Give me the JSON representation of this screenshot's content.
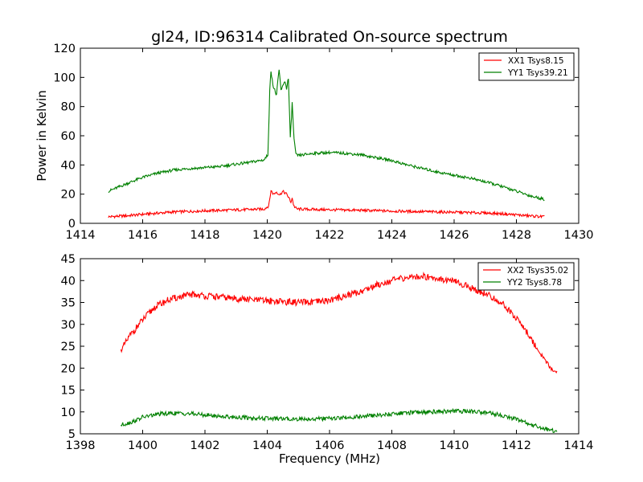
{
  "figure": {
    "title": "gl24, ID:96314 Calibrated On-source spectrum",
    "ylabel": "Power in Kelvin",
    "xlabel": "Frequency (MHz)"
  },
  "chart_data": [
    {
      "type": "line",
      "title": "gl24, ID:96314 Calibrated On-source spectrum",
      "ylabel": "Power in Kelvin",
      "xlabel": "",
      "xlim": [
        1414,
        1430
      ],
      "ylim": [
        0,
        120
      ],
      "xticks": [
        1414,
        1416,
        1418,
        1420,
        1422,
        1424,
        1426,
        1428,
        1430
      ],
      "yticks": [
        0,
        20,
        40,
        60,
        80,
        100,
        120
      ],
      "legend_position": "top-right",
      "grid": false,
      "series": [
        {
          "name": "XX1 Tsys8.15",
          "color": "#ff0000",
          "points": [
            [
              1414.9,
              4.5
            ],
            [
              1415.5,
              5.2
            ],
            [
              1416.0,
              6.2
            ],
            [
              1416.5,
              7.0
            ],
            [
              1417.0,
              7.8
            ],
            [
              1417.5,
              8.2
            ],
            [
              1418.0,
              8.6
            ],
            [
              1418.5,
              8.9
            ],
            [
              1419.0,
              9.2
            ],
            [
              1419.5,
              9.5
            ],
            [
              1419.9,
              9.8
            ],
            [
              1420.05,
              12.0
            ],
            [
              1420.12,
              22.5
            ],
            [
              1420.2,
              20.0
            ],
            [
              1420.3,
              21.5
            ],
            [
              1420.4,
              19.5
            ],
            [
              1420.5,
              21.8
            ],
            [
              1420.6,
              20.5
            ],
            [
              1420.7,
              17.5
            ],
            [
              1420.75,
              14.0
            ],
            [
              1420.8,
              17.5
            ],
            [
              1420.85,
              12.0
            ],
            [
              1420.95,
              9.8
            ],
            [
              1421.5,
              9.5
            ],
            [
              1422.0,
              9.3
            ],
            [
              1423.0,
              8.9
            ],
            [
              1424.0,
              8.4
            ],
            [
              1425.0,
              8.0
            ],
            [
              1426.0,
              7.6
            ],
            [
              1427.0,
              7.1
            ],
            [
              1427.5,
              6.6
            ],
            [
              1428.0,
              5.8
            ],
            [
              1428.5,
              5.0
            ],
            [
              1428.9,
              4.5
            ]
          ]
        },
        {
          "name": "YY1 Tsys39.21",
          "color": "#008000",
          "points": [
            [
              1414.9,
              22.0
            ],
            [
              1415.3,
              25.5
            ],
            [
              1415.7,
              29.0
            ],
            [
              1416.0,
              31.5
            ],
            [
              1416.5,
              34.5
            ],
            [
              1417.0,
              36.5
            ],
            [
              1417.5,
              37.5
            ],
            [
              1418.0,
              38.2
            ],
            [
              1418.5,
              39.0
            ],
            [
              1419.0,
              40.5
            ],
            [
              1419.5,
              42.0
            ],
            [
              1419.9,
              43.5
            ],
            [
              1420.02,
              47.0
            ],
            [
              1420.08,
              90.0
            ],
            [
              1420.12,
              105.0
            ],
            [
              1420.2,
              93.0
            ],
            [
              1420.3,
              88.0
            ],
            [
              1420.38,
              105.0
            ],
            [
              1420.45,
              90.0
            ],
            [
              1420.55,
              98.0
            ],
            [
              1420.62,
              93.0
            ],
            [
              1420.68,
              99.0
            ],
            [
              1420.74,
              58.0
            ],
            [
              1420.8,
              82.0
            ],
            [
              1420.86,
              58.0
            ],
            [
              1420.92,
              47.0
            ],
            [
              1421.0,
              46.5
            ],
            [
              1421.5,
              48.0
            ],
            [
              1422.0,
              48.5
            ],
            [
              1422.5,
              48.0
            ],
            [
              1423.0,
              47.0
            ],
            [
              1423.5,
              45.0
            ],
            [
              1424.0,
              43.0
            ],
            [
              1424.5,
              40.0
            ],
            [
              1425.0,
              37.5
            ],
            [
              1425.5,
              35.0
            ],
            [
              1426.0,
              33.0
            ],
            [
              1426.5,
              31.0
            ],
            [
              1427.0,
              28.5
            ],
            [
              1427.5,
              25.5
            ],
            [
              1428.0,
              22.0
            ],
            [
              1428.5,
              18.5
            ],
            [
              1428.9,
              16.5
            ]
          ]
        }
      ]
    },
    {
      "type": "line",
      "title": "",
      "ylabel": "",
      "xlabel": "Frequency (MHz)",
      "xlim": [
        1398,
        1414
      ],
      "ylim": [
        5,
        45
      ],
      "xticks": [
        1398,
        1400,
        1402,
        1404,
        1406,
        1408,
        1410,
        1412,
        1414
      ],
      "yticks": [
        5,
        10,
        15,
        20,
        25,
        30,
        35,
        40,
        45
      ],
      "legend_position": "top-right",
      "grid": false,
      "series": [
        {
          "name": "XX2 Tsys35.02",
          "color": "#ff0000",
          "points": [
            [
              1399.3,
              24.0
            ],
            [
              1399.6,
              27.5
            ],
            [
              1400.0,
              31.0
            ],
            [
              1400.4,
              34.0
            ],
            [
              1400.8,
              35.5
            ],
            [
              1401.2,
              36.3
            ],
            [
              1401.6,
              36.8
            ],
            [
              1402.0,
              36.5
            ],
            [
              1402.5,
              36.2
            ],
            [
              1403.0,
              35.9
            ],
            [
              1403.5,
              35.6
            ],
            [
              1404.0,
              35.4
            ],
            [
              1404.5,
              35.2
            ],
            [
              1405.0,
              35.0
            ],
            [
              1405.5,
              35.0
            ],
            [
              1406.0,
              35.5
            ],
            [
              1406.5,
              36.5
            ],
            [
              1407.0,
              37.5
            ],
            [
              1407.5,
              39.0
            ],
            [
              1408.0,
              40.0
            ],
            [
              1408.5,
              40.7
            ],
            [
              1409.0,
              41.0
            ],
            [
              1409.5,
              40.5
            ],
            [
              1410.0,
              39.8
            ],
            [
              1410.5,
              38.5
            ],
            [
              1411.0,
              37.0
            ],
            [
              1411.5,
              35.0
            ],
            [
              1412.0,
              31.5
            ],
            [
              1412.4,
              27.5
            ],
            [
              1412.8,
              23.0
            ],
            [
              1413.1,
              20.0
            ],
            [
              1413.3,
              19.0
            ]
          ]
        },
        {
          "name": "YY2 Tsys8.78",
          "color": "#008000",
          "points": [
            [
              1399.3,
              7.0
            ],
            [
              1399.7,
              7.8
            ],
            [
              1400.0,
              8.8
            ],
            [
              1400.5,
              9.5
            ],
            [
              1401.0,
              9.7
            ],
            [
              1401.5,
              9.6
            ],
            [
              1402.0,
              9.3
            ],
            [
              1402.5,
              9.0
            ],
            [
              1403.0,
              8.8
            ],
            [
              1403.5,
              8.6
            ],
            [
              1404.0,
              8.5
            ],
            [
              1404.5,
              8.4
            ],
            [
              1405.0,
              8.4
            ],
            [
              1405.5,
              8.4
            ],
            [
              1406.0,
              8.5
            ],
            [
              1406.5,
              8.7
            ],
            [
              1407.0,
              8.9
            ],
            [
              1407.5,
              9.2
            ],
            [
              1408.0,
              9.5
            ],
            [
              1408.5,
              9.8
            ],
            [
              1409.0,
              10.0
            ],
            [
              1409.5,
              10.1
            ],
            [
              1410.0,
              10.2
            ],
            [
              1410.5,
              10.1
            ],
            [
              1411.0,
              9.9
            ],
            [
              1411.5,
              9.3
            ],
            [
              1412.0,
              8.3
            ],
            [
              1412.5,
              7.0
            ],
            [
              1413.0,
              6.0
            ],
            [
              1413.3,
              5.5
            ]
          ]
        }
      ]
    }
  ]
}
